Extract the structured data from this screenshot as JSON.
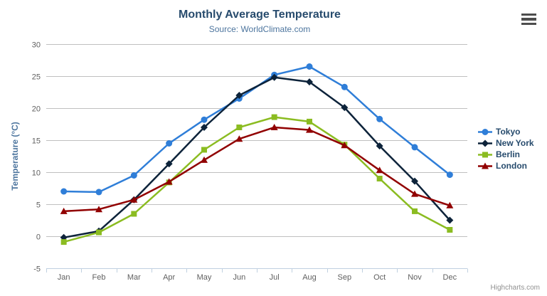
{
  "chart": {
    "credits_label": "Highcharts.com",
    "export_icon": "hamburger-icon"
  },
  "chart_data": {
    "type": "line",
    "title": "Monthly Average Temperature",
    "subtitle": "Source: WorldClimate.com",
    "xlabel": "",
    "ylabel": "Temperature (°C)",
    "categories": [
      "Jan",
      "Feb",
      "Mar",
      "Apr",
      "May",
      "Jun",
      "Jul",
      "Aug",
      "Sep",
      "Oct",
      "Nov",
      "Dec"
    ],
    "series": [
      {
        "name": "Tokyo",
        "color": "#2f7ed8",
        "marker": "circle",
        "values": [
          7.0,
          6.9,
          9.5,
          14.5,
          18.2,
          21.5,
          25.2,
          26.5,
          23.3,
          18.3,
          13.9,
          9.6
        ]
      },
      {
        "name": "New York",
        "color": "#0d233a",
        "marker": "diamond",
        "values": [
          -0.2,
          0.8,
          5.7,
          11.3,
          17.0,
          22.0,
          24.8,
          24.1,
          20.1,
          14.1,
          8.6,
          2.5
        ]
      },
      {
        "name": "Berlin",
        "color": "#8bbc21",
        "marker": "square",
        "values": [
          -0.9,
          0.6,
          3.5,
          8.4,
          13.5,
          17.0,
          18.6,
          17.9,
          14.3,
          9.0,
          3.9,
          1.0
        ]
      },
      {
        "name": "London",
        "color": "#910000",
        "marker": "triangle",
        "values": [
          3.9,
          4.2,
          5.7,
          8.5,
          11.9,
          15.2,
          17.0,
          16.6,
          14.2,
          10.3,
          6.6,
          4.8
        ]
      }
    ],
    "ylim": [
      -5,
      30
    ],
    "ytick_step": 5,
    "grid": true,
    "legend_position": "right",
    "colors": {
      "title": "#274b6d",
      "subtitle": "#4d759e",
      "axis_title": "#4d759e",
      "tick_label": "#606060",
      "grid_line": "#c0c0c0",
      "axis_line": "#c0d0e0",
      "legend_text": "#274b6d",
      "credits": "#909090"
    }
  }
}
